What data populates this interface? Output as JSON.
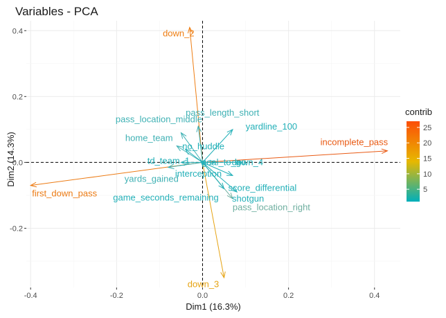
{
  "chart_data": {
    "type": "scatter",
    "title": "Variables - PCA",
    "xlabel": "Dim1 (16.3%)",
    "ylabel": "Dim2 (14.3%)",
    "xlim": [
      -0.41,
      0.46
    ],
    "ylim": [
      -0.38,
      0.43
    ],
    "x_ticks": [
      -0.4,
      -0.2,
      0.0,
      0.2,
      0.4
    ],
    "x_tick_labels": [
      "-0.4",
      "-0.2",
      "0.0",
      "0.2",
      "0.4"
    ],
    "y_ticks": [
      -0.2,
      0.0,
      0.2,
      0.4
    ],
    "y_tick_labels": [
      "-0.2",
      "0.0",
      "0.2",
      "0.4"
    ],
    "grid": true,
    "reference_lines": {
      "x": 0,
      "y": 0,
      "style": "dashed"
    },
    "legend": {
      "title": "contrib",
      "type": "colorbar",
      "placement": "right",
      "range": [
        1,
        27
      ],
      "ticks": [
        5,
        10,
        15,
        20,
        25
      ],
      "colors": [
        "#00AFBB",
        "#E7B800",
        "#FC4E07"
      ]
    },
    "variables": [
      {
        "name": "incomplete_pass",
        "x": 0.43,
        "y": 0.035,
        "contrib": 27,
        "color": "#E95A13"
      },
      {
        "name": "first_down_pass",
        "x": -0.4,
        "y": -0.07,
        "contrib": 24,
        "color": "#EC7B14"
      },
      {
        "name": "down_2",
        "x": -0.03,
        "y": 0.41,
        "contrib": 22,
        "color": "#EE7D12"
      },
      {
        "name": "down_3",
        "x": 0.05,
        "y": -0.35,
        "contrib": 17,
        "color": "#E6A312"
      },
      {
        "name": "pass_location_right",
        "x": 0.07,
        "y": -0.11,
        "contrib": 6,
        "color": "#6FAFA0"
      },
      {
        "name": "pass_length_short",
        "x": -0.01,
        "y": 0.11,
        "contrib": 4,
        "color": "#3FB1B4"
      },
      {
        "name": "pass_location_middle",
        "x": -0.05,
        "y": 0.09,
        "contrib": 4,
        "color": "#3FB1B4"
      },
      {
        "name": "yardline_100",
        "x": 0.07,
        "y": 0.1,
        "contrib": 3,
        "color": "#23B0B8"
      },
      {
        "name": "home_team",
        "x": -0.06,
        "y": 0.05,
        "contrib": 3,
        "color": "#3FB1B4"
      },
      {
        "name": "no_huddle",
        "x": -0.04,
        "y": 0.04,
        "contrib": 3,
        "color": "#23B0B8"
      },
      {
        "name": "td_team_1",
        "x": -0.05,
        "y": 0.0,
        "contrib": 2,
        "color": "#23B0B8"
      },
      {
        "name": "yards_gained",
        "x": -0.08,
        "y": -0.015,
        "contrib": 2,
        "color": "#3FB1B4"
      },
      {
        "name": "interception",
        "x": 0.0,
        "y": -0.01,
        "contrib": 2,
        "color": "#23B0B8"
      },
      {
        "name": "goal_to_go",
        "x": 0.03,
        "y": 0.0,
        "contrib": 2,
        "color": "#23B0B8"
      },
      {
        "name": "down_4",
        "x": 0.09,
        "y": 0.0,
        "contrib": 2,
        "color": "#23B0B8"
      },
      {
        "name": "score_differential",
        "x": 0.07,
        "y": -0.04,
        "contrib": 2,
        "color": "#23B0B8"
      },
      {
        "name": "shotgun",
        "x": 0.08,
        "y": -0.09,
        "contrib": 3,
        "color": "#23B0B8"
      },
      {
        "name": "game_seconds_remaining",
        "x": 0.05,
        "y": -0.08,
        "contrib": 2,
        "color": "#23B0B8"
      }
    ]
  }
}
